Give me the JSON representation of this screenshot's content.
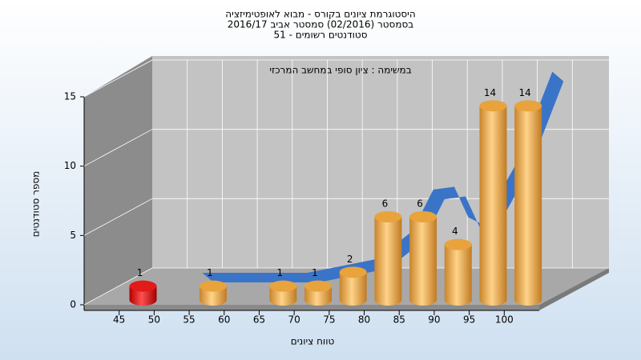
{
  "chart_data": {
    "type": "bar",
    "title": [
      "היסטוגרמת ציונים בקורס - מבוא לאופטימיזציה",
      "בסמסטר (02/2016)  סמסטר אביב 2016/17",
      "סטודנטים רשומים - 51"
    ],
    "annotation": "במשימה : ציון סופי במחשב המרכזי",
    "x_label": "טווח ציונים",
    "y_label": "מספר סטודנטים",
    "x": [
      47.5,
      57.5,
      67.5,
      72.5,
      77.5,
      82.5,
      87.5,
      92.5,
      97.5,
      102.5
    ],
    "values": [
      1,
      1,
      1,
      1,
      2,
      6,
      6,
      4,
      14,
      14
    ],
    "colors": [
      "#e21a1a",
      "#e8a33c",
      "#e8a33c",
      "#e8a33c",
      "#e8a33c",
      "#e8a33c",
      "#e8a33c",
      "#e8a33c",
      "#e8a33c",
      "#e8a33c"
    ],
    "curve": {
      "x": [
        50,
        60,
        65,
        70,
        75,
        80,
        83,
        86,
        88,
        90,
        95,
        100
      ],
      "values": [
        0,
        0,
        0,
        0.5,
        1,
        3,
        6,
        6.2,
        4,
        3.5,
        8,
        14.5
      ],
      "color": "#3a74c8"
    },
    "xlim": [
      40,
      105
    ],
    "xticks": [
      45,
      50,
      55,
      60,
      65,
      70,
      75,
      80,
      85,
      90,
      95,
      100
    ],
    "ylim": [
      0,
      15
    ],
    "yticks": [
      0,
      5,
      10,
      15
    ],
    "grid": true
  }
}
